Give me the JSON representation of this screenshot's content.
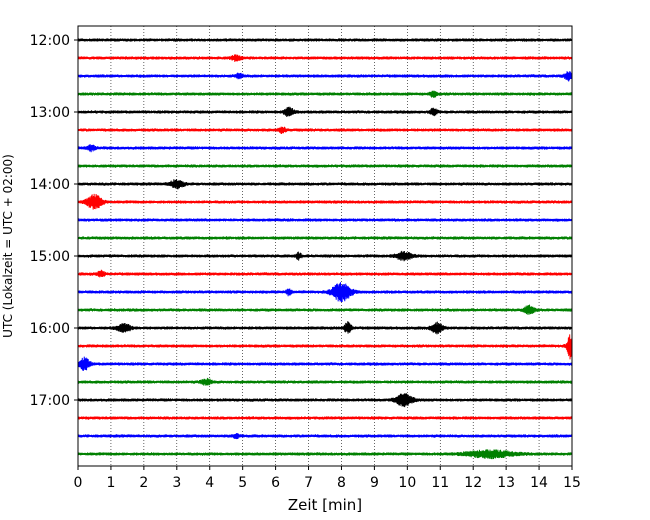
{
  "chart_data": {
    "type": "line",
    "title": "",
    "xlabel": "Zeit  [min]",
    "ylabel": "UTC (Lokalzeit = UTC + 02:00)",
    "xlim": [
      0,
      15
    ],
    "x_ticks": [
      "0",
      "1",
      "2",
      "3",
      "4",
      "5",
      "6",
      "7",
      "8",
      "9",
      "10",
      "11",
      "12",
      "13",
      "14",
      "15"
    ],
    "y_ticks": [
      "12:00",
      "13:00",
      "14:00",
      "15:00",
      "16:00",
      "17:00"
    ],
    "grid": "vertical dotted",
    "trace_start_minutes": 720,
    "trace_interval_minutes": 15,
    "trace_colors": [
      "#000000",
      "#ff0000",
      "#0000ff",
      "#008000"
    ],
    "trace_count": 24,
    "events": [
      {
        "trace": 1,
        "x": 4.8,
        "amp": 2.5,
        "w": 0.15
      },
      {
        "trace": 2,
        "x": 4.9,
        "amp": 2.5,
        "w": 0.1
      },
      {
        "trace": 2,
        "x": 14.9,
        "amp": 4,
        "w": 0.12
      },
      {
        "trace": 3,
        "x": 10.8,
        "amp": 3,
        "w": 0.1
      },
      {
        "trace": 4,
        "x": 6.4,
        "amp": 4,
        "w": 0.15
      },
      {
        "trace": 4,
        "x": 10.8,
        "amp": 3.5,
        "w": 0.1
      },
      {
        "trace": 5,
        "x": 6.2,
        "amp": 3,
        "w": 0.1
      },
      {
        "trace": 6,
        "x": 0.4,
        "amp": 3,
        "w": 0.1
      },
      {
        "trace": 8,
        "x": 3.0,
        "amp": 4,
        "w": 0.2
      },
      {
        "trace": 9,
        "x": 0.5,
        "amp": 7,
        "w": 0.22
      },
      {
        "trace": 12,
        "x": 9.9,
        "amp": 4,
        "w": 0.25
      },
      {
        "trace": 12,
        "x": 6.7,
        "amp": 3,
        "w": 0.08
      },
      {
        "trace": 13,
        "x": 0.7,
        "amp": 3,
        "w": 0.1
      },
      {
        "trace": 14,
        "x": 8.0,
        "amp": 9,
        "w": 0.28
      },
      {
        "trace": 14,
        "x": 6.4,
        "amp": 3,
        "w": 0.08
      },
      {
        "trace": 15,
        "x": 13.7,
        "amp": 4,
        "w": 0.15
      },
      {
        "trace": 16,
        "x": 1.4,
        "amp": 4,
        "w": 0.2
      },
      {
        "trace": 16,
        "x": 8.2,
        "amp": 6,
        "w": 0.1
      },
      {
        "trace": 16,
        "x": 10.9,
        "amp": 5,
        "w": 0.18
      },
      {
        "trace": 17,
        "x": 14.95,
        "amp": 12,
        "w": 0.1
      },
      {
        "trace": 18,
        "x": 0.2,
        "amp": 6,
        "w": 0.15
      },
      {
        "trace": 19,
        "x": 3.9,
        "amp": 3,
        "w": 0.15
      },
      {
        "trace": 20,
        "x": 9.9,
        "amp": 6,
        "w": 0.25
      },
      {
        "trace": 22,
        "x": 4.8,
        "amp": 2.5,
        "w": 0.1
      },
      {
        "trace": 23,
        "x": 12.5,
        "amp": 3.5,
        "w": 0.7
      }
    ]
  }
}
